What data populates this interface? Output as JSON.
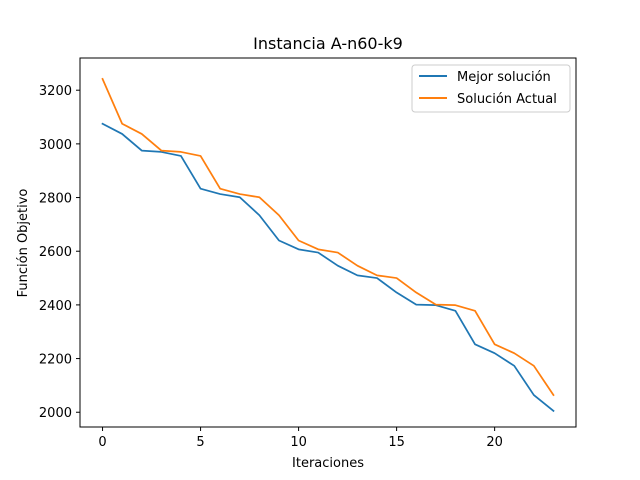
{
  "chart_data": {
    "type": "line",
    "title": "Instancia A-n60-k9",
    "xlabel": "Iteraciones",
    "ylabel": "Función Objetivo",
    "xlim": [
      -1.15,
      24.15
    ],
    "ylim": [
      1945,
      3320
    ],
    "xticks": [
      0,
      5,
      10,
      15,
      20
    ],
    "yticks": [
      2000,
      2200,
      2400,
      2600,
      2800,
      3000,
      3200
    ],
    "legend_position": "top-right",
    "grid": false,
    "x": [
      0,
      1,
      2,
      3,
      4,
      5,
      6,
      7,
      8,
      9,
      10,
      11,
      12,
      13,
      14,
      15,
      16,
      17,
      18,
      19,
      20,
      21,
      22,
      23
    ],
    "series": [
      {
        "name": "Mejor solución",
        "color": "#1f77b4",
        "values": [
          3075,
          3037,
          2975,
          2970,
          2955,
          2833,
          2813,
          2801,
          2734,
          2640,
          2607,
          2595,
          2546,
          2510,
          2500,
          2446,
          2401,
          2399,
          2378,
          2253,
          2220,
          2173,
          2064,
          2005
        ]
      },
      {
        "name": "Solución Actual",
        "color": "#ff7f0e",
        "values": [
          3242,
          3075,
          3037,
          2975,
          2970,
          2955,
          2833,
          2813,
          2801,
          2734,
          2640,
          2607,
          2595,
          2546,
          2510,
          2500,
          2446,
          2401,
          2399,
          2378,
          2253,
          2220,
          2173,
          2064
        ]
      }
    ]
  }
}
